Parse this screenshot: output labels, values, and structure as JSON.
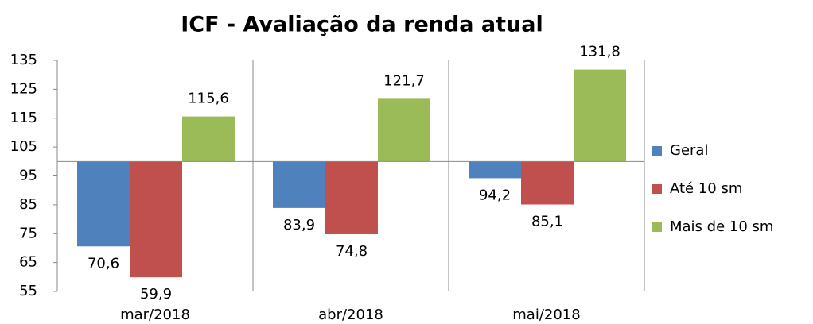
{
  "chart_data": {
    "type": "bar",
    "title": "ICF - Avaliação da renda atual",
    "categories": [
      "mar/2018",
      "abr/2018",
      "mai/2018"
    ],
    "baseline": 100,
    "series": [
      {
        "name": "Geral",
        "color": "#4f81bd",
        "values": [
          70.6,
          83.9,
          94.2
        ],
        "value_labels": [
          "70,6",
          "83,9",
          "94,2"
        ]
      },
      {
        "name": "Até 10 sm",
        "color": "#c0504d",
        "values": [
          59.9,
          74.8,
          85.1
        ],
        "value_labels": [
          "59,9",
          "74,8",
          "85,1"
        ]
      },
      {
        "name": "Mais de 10 sm",
        "color": "#9bbb59",
        "values": [
          115.6,
          121.7,
          131.8
        ],
        "value_labels": [
          "115,6",
          "121,7",
          "131,8"
        ]
      }
    ],
    "ylim": [
      55,
      135
    ],
    "yticks": [
      55,
      65,
      75,
      85,
      95,
      105,
      115,
      125,
      135
    ],
    "legend": "right"
  }
}
